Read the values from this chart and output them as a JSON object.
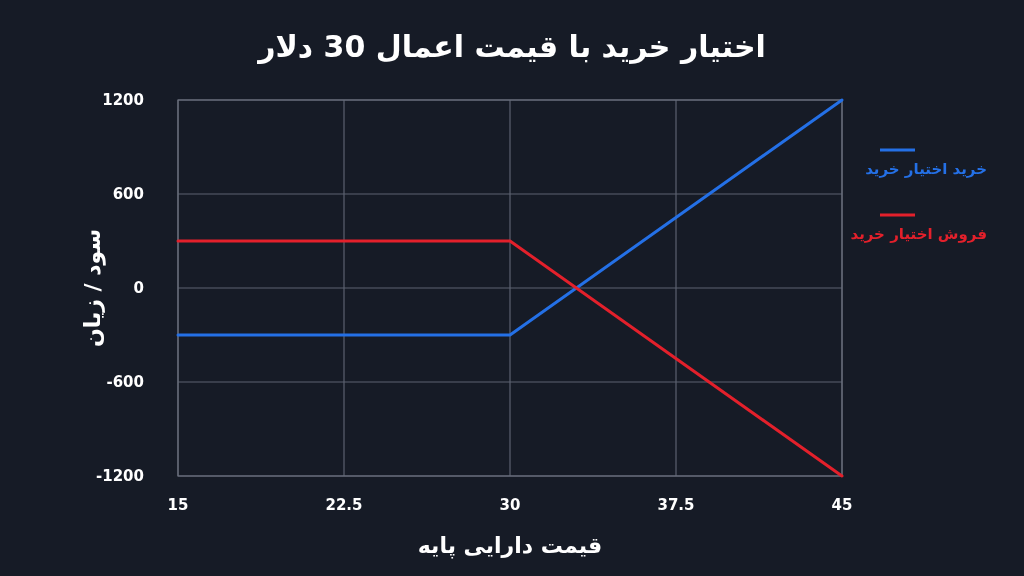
{
  "chart_data": {
    "type": "line",
    "title": "اختیار خرید با قیمت اعمال 30 دلار",
    "xlabel": "قیمت دارایی پایه",
    "ylabel": "سود / زیان",
    "x": [
      15,
      30,
      45
    ],
    "series": [
      {
        "name": "خرید اختیار خرید",
        "color": "#2470e6",
        "values": [
          -300,
          -300,
          1200
        ]
      },
      {
        "name": "فروش اختیار خرید",
        "color": "#e3202b",
        "values": [
          300,
          300,
          -1200
        ]
      }
    ],
    "xlim": [
      15,
      45
    ],
    "xticks": [
      15,
      22.5,
      30,
      37.5,
      45
    ],
    "ylim": [
      -1200,
      1200
    ],
    "yticks": [
      -1200,
      -600,
      0,
      600,
      1200
    ],
    "grid": true,
    "legend": "right",
    "marker": "none",
    "line_style": "solid"
  }
}
